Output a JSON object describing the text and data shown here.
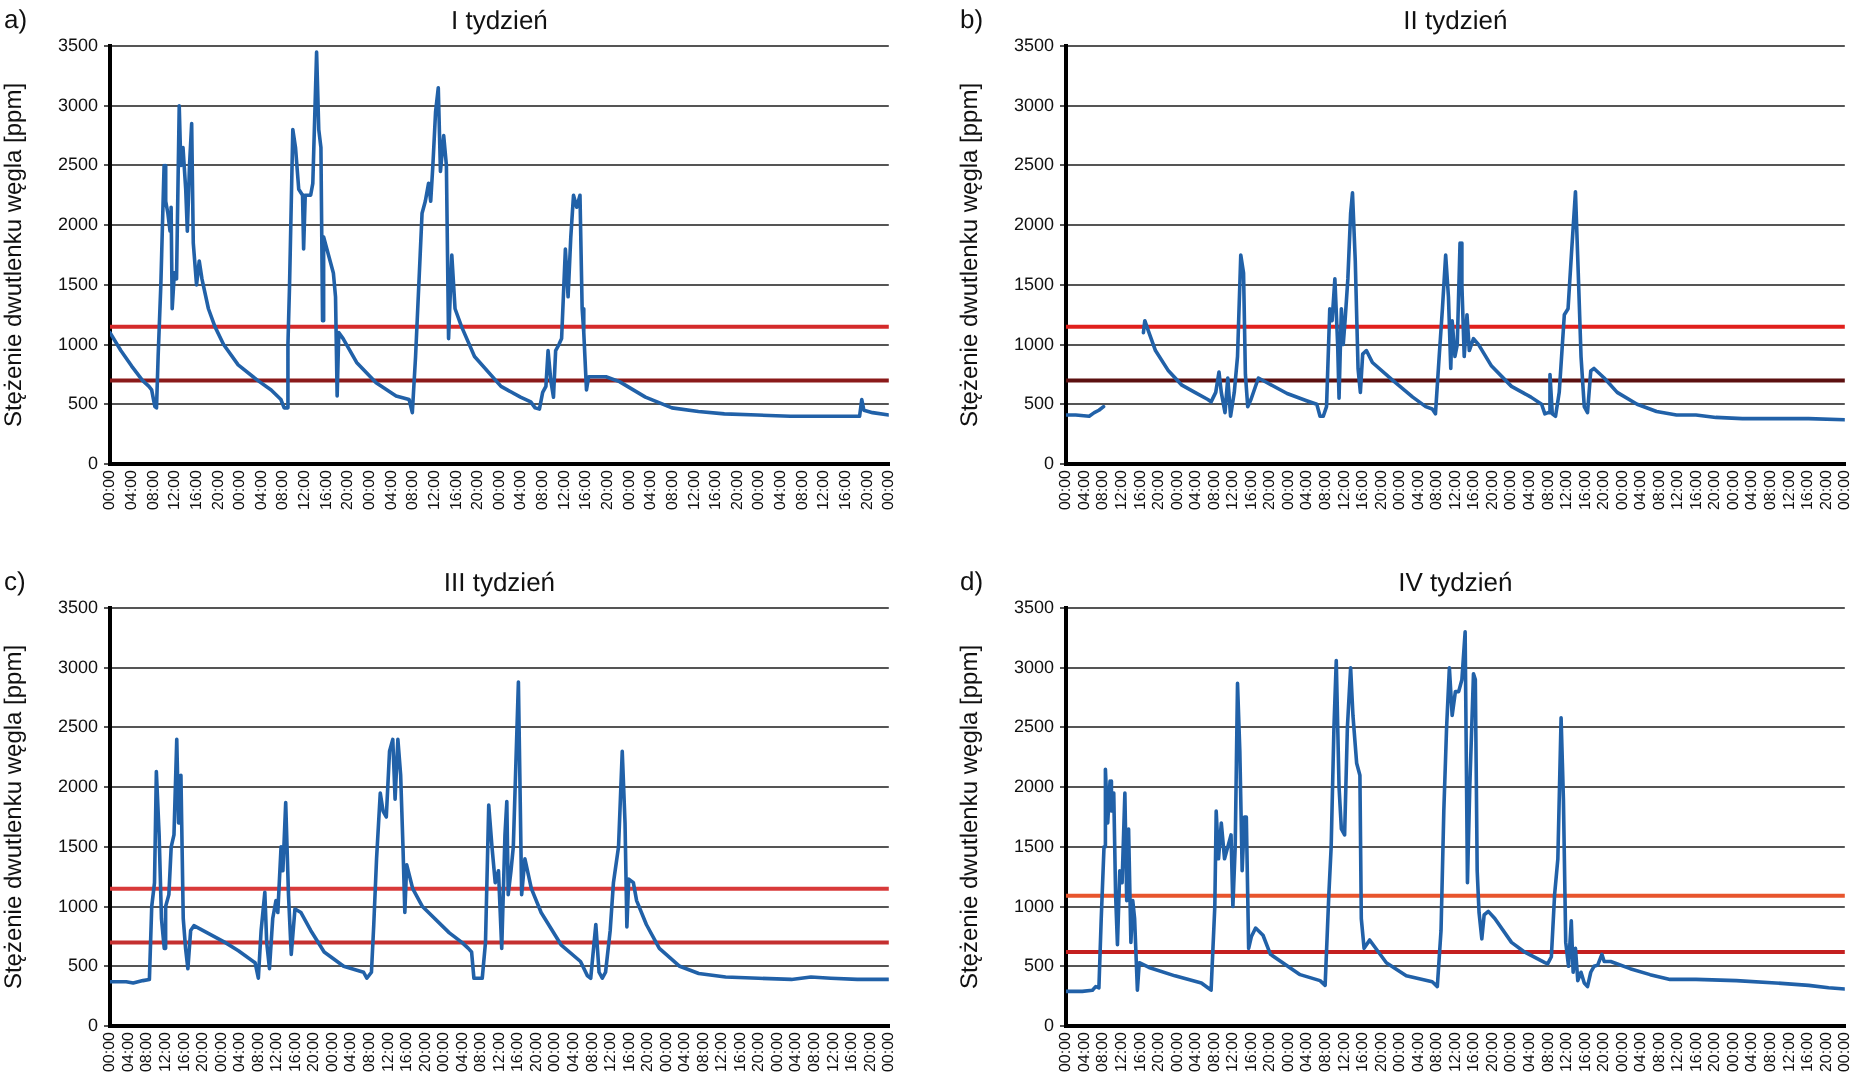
{
  "chart_data": [
    {
      "type": "line",
      "title": "I tydzień",
      "ylabel": "Stężenie dwutlenku węgla [ppm]",
      "annotations": [
        "a)"
      ],
      "grid": "y",
      "xlim": [
        "--01-01T00:00",
        "--01-07T00:00"
      ],
      "ylim": [
        0,
        3500
      ],
      "yticks": [
        0,
        500,
        1000,
        1500,
        2000,
        2500,
        3000,
        3500
      ],
      "xticks": [
        {
          "value": "--01-01T00:00",
          "label": "00:00"
        },
        {
          "value": "--01-01T04:00",
          "label": "04:00"
        },
        {
          "value": "--01-01T08:00",
          "label": "08:00"
        },
        {
          "value": "--01-01T12:00",
          "label": "12:00"
        },
        {
          "value": "--01-01T16:00",
          "label": "16:00"
        },
        {
          "value": "--01-01T20:00",
          "label": "20:00"
        },
        {
          "value": "--01-02T00:00",
          "label": "00:00"
        },
        {
          "value": "--01-02T04:00",
          "label": "04:00"
        },
        {
          "value": "--01-02T08:00",
          "label": "08:00"
        },
        {
          "value": "--01-02T12:00",
          "label": "12:00"
        },
        {
          "value": "--01-02T16:00",
          "label": "16:00"
        },
        {
          "value": "--01-02T20:00",
          "label": "20:00"
        },
        {
          "value": "--01-03T00:00",
          "label": "00:00"
        },
        {
          "value": "--01-03T04:00",
          "label": "04:00"
        },
        {
          "value": "--01-03T08:00",
          "label": "08:00"
        },
        {
          "value": "--01-03T12:00",
          "label": "12:00"
        },
        {
          "value": "--01-03T16:00",
          "label": "16:00"
        },
        {
          "value": "--01-03T20:00",
          "label": "20:00"
        },
        {
          "value": "--01-04T00:00",
          "label": "00:00"
        },
        {
          "value": "--01-04T04:00",
          "label": "04:00"
        },
        {
          "value": "--01-04T08:00",
          "label": "08:00"
        },
        {
          "value": "--01-04T12:00",
          "label": "12:00"
        },
        {
          "value": "--01-04T16:00",
          "label": "16:00"
        },
        {
          "value": "--01-04T20:00",
          "label": "20:00"
        },
        {
          "value": "--01-05T00:00",
          "label": "00:00"
        },
        {
          "value": "--01-05T04:00",
          "label": "04:00"
        },
        {
          "value": "--01-05T08:00",
          "label": "08:00"
        },
        {
          "value": "--01-05T12:00",
          "label": "12:00"
        },
        {
          "value": "--01-05T16:00",
          "label": "16:00"
        },
        {
          "value": "--01-05T20:00",
          "label": "20:00"
        },
        {
          "value": "--01-06T00:00",
          "label": "00:00"
        },
        {
          "value": "--01-06T04:00",
          "label": "04:00"
        },
        {
          "value": "--01-06T08:00",
          "label": "08:00"
        },
        {
          "value": "--01-06T12:00",
          "label": "12:00"
        },
        {
          "value": "--01-06T16:00",
          "label": "16:00"
        },
        {
          "value": "--01-06T20:00",
          "label": "20:00"
        },
        {
          "value": "--01-07T00:00",
          "label": "00:00"
        }
      ],
      "ref_lines": [
        {
          "axis": "y",
          "value": 1150,
          "color": "#d42a2a"
        },
        {
          "axis": "y",
          "value": 700,
          "color": "#8b1a1a"
        }
      ],
      "series": [
        {
          "color": "#2161a8",
          "x": [
            "--01-01T00:00",
            "--01-01T02:00",
            "--01-01T04:00",
            "--01-01T06:00",
            "--01-01T07:12",
            "--01-01T07:42",
            "--01-01T08:18",
            "--01-01T08:36",
            "--01-01T08:54",
            "--01-01T09:24",
            "--01-01T10:00",
            "--01-01T10:18",
            "--01-01T10:42",
            "--01-01T11:06",
            "--01-01T11:18",
            "--01-01T11:30",
            "--01-01T11:54",
            "--01-01T12:18",
            "--01-01T12:48",
            "--01-01T13:06",
            "--01-01T13:30",
            "--01-01T14:00",
            "--01-01T14:18",
            "--01-01T14:42",
            "--01-01T15:06",
            "--01-01T15:24",
            "--01-01T16:00",
            "--01-01T16:30",
            "--01-01T17:00",
            "--01-01T18:12",
            "--01-01T19:24",
            "--01-01T21:00",
            "--01-01T23:42",
            "--01-02T03:18",
            "--01-02T05:48",
            "--01-02T07:36",
            "--01-02T08:12",
            "--01-02T08:36",
            "--01-02T08:54",
            "--01-02T09:12",
            "--01-02T09:48",
            "--01-02T10:18",
            "--01-02T10:54",
            "--01-02T11:36",
            "--01-02T11:48",
            "--01-02T12:06",
            "--01-02T13:06",
            "--01-02T13:30",
            "--01-02T14:12",
            "--01-02T14:36",
            "--01-02T15:00",
            "--01-02T15:18",
            "--01-02T15:30",
            "--01-02T16:06",
            "--01-02T17:18",
            "--01-02T17:42",
            "--01-02T18:00",
            "--01-02T18:18",
            "--01-02T19:06",
            "--01-02T21:36",
            "--01-03T01:12",
            "--01-03T04:54",
            "--01-03T07:18",
            "--01-03T07:54",
            "--01-03T08:30",
            "--01-03T09:42",
            "--01-03T10:18",
            "--01-03T10:54",
            "--01-03T11:18",
            "--01-03T11:42",
            "--01-03T12:12",
            "--01-03T12:42",
            "--01-03T13:06",
            "--01-03T13:42",
            "--01-03T14:12",
            "--01-03T14:36",
            "--01-03T15:12",
            "--01-03T15:48",
            "--01-03T17:00",
            "--01-03T19:24",
            "--01-04T00:18",
            "--01-04T03:54",
            "--01-04T05:48",
            "--01-04T06:36",
            "--01-04T07:24",
            "--01-04T08:00",
            "--01-04T08:36",
            "--01-04T09:00",
            "--01-04T09:30",
            "--01-04T10:00",
            "--01-04T10:24",
            "--01-04T11:00",
            "--01-04T11:30",
            "--01-04T12:12",
            "--01-04T12:42",
            "--01-04T13:12",
            "--01-04T13:42",
            "--01-04T14:18",
            "--01-04T14:54",
            "--01-04T15:18",
            "--01-04T15:36",
            "--01-04T16:06",
            "--01-04T16:30",
            "--01-04T19:42",
            "--01-04T22:12",
            "--01-05T03:00",
            "--01-05T07:54",
            "--01-05T12:48",
            "--01-05T17:36",
            "--01-05T23:42",
            "--01-06T05:48",
            "--01-06T11:54",
            "--01-06T18:36",
            "--01-06T19:00",
            "--01-06T19:24",
            "--01-06T21:00",
            "--01-07T00:00"
          ],
          "values": [
            1100,
            950,
            820,
            700,
            650,
            620,
            480,
            470,
            900,
            1500,
            2500,
            2200,
            2100,
            1950,
            2150,
            1300,
            1600,
            1550,
            3000,
            2500,
            2650,
            2300,
            1950,
            2500,
            2850,
            1850,
            1500,
            1700,
            1550,
            1300,
            1150,
            1000,
            830,
            700,
            620,
            540,
            470,
            470,
            1000,
            1500,
            2800,
            2650,
            2300,
            2250,
            1800,
            2250,
            2250,
            2350,
            3450,
            2800,
            2650,
            1200,
            1900,
            1800,
            1600,
            1400,
            570,
            1100,
            1050,
            850,
            680,
            570,
            540,
            430,
            900,
            2100,
            2200,
            2350,
            2200,
            2500,
            2950,
            3150,
            2450,
            2750,
            2500,
            1050,
            1750,
            1300,
            1150,
            900,
            650,
            560,
            520,
            470,
            460,
            600,
            650,
            950,
            700,
            560,
            950,
            1000,
            1050,
            1800,
            1400,
            1900,
            2250,
            2150,
            2250,
            1300,
            1100,
            620,
            730,
            730,
            690,
            560,
            470,
            440,
            420,
            410,
            400,
            400,
            400,
            540,
            450,
            430,
            410
          ]
        }
      ]
    },
    {
      "type": "line",
      "title": "II tydzień",
      "ylabel": "Stężenie dwutlenku węgla [ppm]",
      "annotations": [
        "b)"
      ],
      "grid": "y",
      "xlim": [
        "--01-01T00:00",
        "--01-08T00:00"
      ],
      "ylim": [
        0,
        3500
      ],
      "yticks": [
        0,
        500,
        1000,
        1500,
        2000,
        2500,
        3000,
        3500
      ],
      "xticks": [
        {
          "value": "--01-01T00:00",
          "label": "00:00"
        },
        {
          "value": "--01-01T04:00",
          "label": "04:00"
        },
        {
          "value": "--01-01T08:00",
          "label": "08:00"
        },
        {
          "value": "--01-01T12:00",
          "label": "12:00"
        },
        {
          "value": "--01-01T16:00",
          "label": "16:00"
        },
        {
          "value": "--01-01T20:00",
          "label": "20:00"
        },
        {
          "value": "--01-02T00:00",
          "label": "00:00"
        },
        {
          "value": "--01-02T04:00",
          "label": "04:00"
        },
        {
          "value": "--01-02T08:00",
          "label": "08:00"
        },
        {
          "value": "--01-02T12:00",
          "label": "12:00"
        },
        {
          "value": "--01-02T16:00",
          "label": "16:00"
        },
        {
          "value": "--01-02T20:00",
          "label": "20:00"
        },
        {
          "value": "--01-03T00:00",
          "label": "00:00"
        },
        {
          "value": "--01-03T04:00",
          "label": "04:00"
        },
        {
          "value": "--01-03T08:00",
          "label": "08:00"
        },
        {
          "value": "--01-03T12:00",
          "label": "12:00"
        },
        {
          "value": "--01-03T16:00",
          "label": "16:00"
        },
        {
          "value": "--01-03T20:00",
          "label": "20:00"
        },
        {
          "value": "--01-04T00:00",
          "label": "00:00"
        },
        {
          "value": "--01-04T04:00",
          "label": "04:00"
        },
        {
          "value": "--01-04T08:00",
          "label": "08:00"
        },
        {
          "value": "--01-04T12:00",
          "label": "12:00"
        },
        {
          "value": "--01-04T16:00",
          "label": "16:00"
        },
        {
          "value": "--01-04T20:00",
          "label": "20:00"
        },
        {
          "value": "--01-05T00:00",
          "label": "00:00"
        },
        {
          "value": "--01-05T04:00",
          "label": "04:00"
        },
        {
          "value": "--01-05T08:00",
          "label": "08:00"
        },
        {
          "value": "--01-05T12:00",
          "label": "12:00"
        },
        {
          "value": "--01-05T16:00",
          "label": "16:00"
        },
        {
          "value": "--01-05T20:00",
          "label": "20:00"
        },
        {
          "value": "--01-06T00:00",
          "label": "00:00"
        },
        {
          "value": "--01-06T04:00",
          "label": "04:00"
        },
        {
          "value": "--01-06T08:00",
          "label": "08:00"
        },
        {
          "value": "--01-06T12:00",
          "label": "12:00"
        },
        {
          "value": "--01-06T16:00",
          "label": "16:00"
        },
        {
          "value": "--01-06T20:00",
          "label": "20:00"
        },
        {
          "value": "--01-07T00:00",
          "label": "00:00"
        },
        {
          "value": "--01-07T04:00",
          "label": "04:00"
        },
        {
          "value": "--01-07T08:00",
          "label": "08:00"
        },
        {
          "value": "--01-07T12:00",
          "label": "12:00"
        },
        {
          "value": "--01-07T16:00",
          "label": "16:00"
        },
        {
          "value": "--01-07T20:00",
          "label": "20:00"
        },
        {
          "value": "--01-08T00:00",
          "label": "00:00"
        }
      ],
      "ref_lines": [
        {
          "axis": "y",
          "value": 1150,
          "color": "#e0201c"
        },
        {
          "axis": "y",
          "value": 700,
          "color": "#5c1010"
        }
      ],
      "series": [
        {
          "color": "#2161a8",
          "x": [
            "--01-01T00:00",
            "--01-01T02:06",
            "--01-01T05:00",
            "--01-01T06:06",
            "--01-01T07:06",
            "--01-01T08:06",
            "--01-01T12:00",
            "--01-01T16:42",
            "--01-01T17:00",
            "--01-01T17:54",
            "--01-01T19:18",
            "--01-01T22:06",
            "--01-02T01:00",
            "--01-02T03:48",
            "--01-02T06:36",
            "--01-02T07:18",
            "--01-02T08:18",
            "--01-02T09:00",
            "--01-02T09:30",
            "--01-02T10:18",
            "--01-02T10:54",
            "--01-02T11:30",
            "--01-02T12:18",
            "--01-02T13:00",
            "--01-02T13:42",
            "--01-02T14:18",
            "--01-02T14:42",
            "--01-02T15:12",
            "--01-02T15:54",
            "--01-02T17:30",
            "--01-02T19:24",
            "--01-02T23:42",
            "--01-03T03:54",
            "--01-03T06:06",
            "--01-03T06:48",
            "--01-03T07:30",
            "--01-03T08:12",
            "--01-03T08:54",
            "--01-03T09:24",
            "--01-03T10:00",
            "--01-03T10:36",
            "--01-03T10:54",
            "--01-03T11:24",
            "--01-03T11:48",
            "--01-03T12:12",
            "--01-03T12:48",
            "--01-03T13:24",
            "--01-03T13:48",
            "--01-03T14:24",
            "--01-03T15:00",
            "--01-03T15:30",
            "--01-03T16:00",
            "--01-03T16:48",
            "--01-03T18:06",
            "--01-03T22:30",
            "--01-04T02:48",
            "--01-04T05:36",
            "--01-04T07:00",
            "--01-04T07:42",
            "--01-04T08:30",
            "--01-04T09:12",
            "--01-04T09:54",
            "--01-04T10:30",
            "--01-04T11:00",
            "--01-04T11:18",
            "--01-04T11:54",
            "--01-04T12:24",
            "--01-04T13:00",
            "--01-04T13:24",
            "--01-04T13:54",
            "--01-04T14:30",
            "--01-04T15:00",
            "--01-04T15:54",
            "--01-04T17:00",
            "--01-04T19:48",
            "--01-05T00:06",
            "--01-05T04:18",
            "--01-05T06:36",
            "--01-05T07:18",
            "--01-05T08:00",
            "--01-05T08:24",
            "--01-05T08:54",
            "--01-05T09:36",
            "--01-05T10:24",
            "--01-05T11:30",
            "--01-05T12:18",
            "--01-05T13:06",
            "--01-05T13:54",
            "--01-05T14:30",
            "--01-05T15:06",
            "--01-05T15:48",
            "--01-05T16:30",
            "--01-05T17:12",
            "--01-05T17:54",
            "--01-05T20:06",
            "--01-05T22:54",
            "--01-06T03:12",
            "--01-06T07:24",
            "--01-06T11:42",
            "--01-06T15:54",
            "--01-06T20:12",
            "--01-07T01:54",
            "--01-07T09:06",
            "--01-07T16:12",
            "--01-08T00:00"
          ],
          "values": [
            410,
            410,
            400,
            430,
            450,
            480,
            null,
            1100,
            1200,
            1100,
            950,
            780,
            660,
            600,
            540,
            520,
            600,
            770,
            600,
            430,
            720,
            400,
            600,
            900,
            1750,
            1600,
            750,
            480,
            540,
            720,
            680,
            590,
            530,
            500,
            400,
            400,
            480,
            1300,
            1200,
            1550,
            1000,
            550,
            1300,
            1000,
            1200,
            1550,
            2100,
            2270,
            1700,
            800,
            600,
            920,
            950,
            850,
            700,
            560,
            480,
            460,
            420,
            900,
            1300,
            1750,
            1400,
            800,
            1200,
            900,
            1000,
            1850,
            1500,
            900,
            1250,
            950,
            1050,
            1000,
            820,
            650,
            560,
            500,
            420,
            430,
            750,
            420,
            400,
            600,
            1250,
            1300,
            1800,
            2280,
            1600,
            900,
            480,
            430,
            780,
            800,
            720,
            600,
            500,
            440,
            410,
            410,
            390,
            380,
            380,
            380,
            370
          ]
        }
      ]
    },
    {
      "type": "line",
      "title": "III tydzień",
      "ylabel": "Stężenie dwutlenku węgla [ppm]",
      "annotations": [
        "c)"
      ],
      "grid": "y",
      "xlim": [
        "--01-01T00:00",
        "--01-08T00:00"
      ],
      "ylim": [
        0,
        3500
      ],
      "yticks": [
        0,
        500,
        1000,
        1500,
        2000,
        2500,
        3000,
        3500
      ],
      "xticks": [
        {
          "value": "--01-01T00:00",
          "label": "00:00"
        },
        {
          "value": "--01-01T04:00",
          "label": "04:00"
        },
        {
          "value": "--01-01T08:00",
          "label": "08:00"
        },
        {
          "value": "--01-01T12:00",
          "label": "12:00"
        },
        {
          "value": "--01-01T16:00",
          "label": "16:00"
        },
        {
          "value": "--01-01T20:00",
          "label": "20:00"
        },
        {
          "value": "--01-02T00:00",
          "label": "00:00"
        },
        {
          "value": "--01-02T04:00",
          "label": "04:00"
        },
        {
          "value": "--01-02T08:00",
          "label": "08:00"
        },
        {
          "value": "--01-02T12:00",
          "label": "12:00"
        },
        {
          "value": "--01-02T16:00",
          "label": "16:00"
        },
        {
          "value": "--01-02T20:00",
          "label": "20:00"
        },
        {
          "value": "--01-03T00:00",
          "label": "00:00"
        },
        {
          "value": "--01-03T04:00",
          "label": "04:00"
        },
        {
          "value": "--01-03T08:00",
          "label": "08:00"
        },
        {
          "value": "--01-03T12:00",
          "label": "12:00"
        },
        {
          "value": "--01-03T16:00",
          "label": "16:00"
        },
        {
          "value": "--01-03T20:00",
          "label": "20:00"
        },
        {
          "value": "--01-04T00:00",
          "label": "00:00"
        },
        {
          "value": "--01-04T04:00",
          "label": "04:00"
        },
        {
          "value": "--01-04T08:00",
          "label": "08:00"
        },
        {
          "value": "--01-04T12:00",
          "label": "12:00"
        },
        {
          "value": "--01-04T16:00",
          "label": "16:00"
        },
        {
          "value": "--01-04T20:00",
          "label": "20:00"
        },
        {
          "value": "--01-05T00:00",
          "label": "00:00"
        },
        {
          "value": "--01-05T04:00",
          "label": "04:00"
        },
        {
          "value": "--01-05T08:00",
          "label": "08:00"
        },
        {
          "value": "--01-05T12:00",
          "label": "12:00"
        },
        {
          "value": "--01-05T16:00",
          "label": "16:00"
        },
        {
          "value": "--01-05T20:00",
          "label": "20:00"
        },
        {
          "value": "--01-06T00:00",
          "label": "00:00"
        },
        {
          "value": "--01-06T04:00",
          "label": "04:00"
        },
        {
          "value": "--01-06T08:00",
          "label": "08:00"
        },
        {
          "value": "--01-06T12:00",
          "label": "12:00"
        },
        {
          "value": "--01-06T16:00",
          "label": "16:00"
        },
        {
          "value": "--01-06T20:00",
          "label": "20:00"
        },
        {
          "value": "--01-07T00:00",
          "label": "00:00"
        },
        {
          "value": "--01-07T04:00",
          "label": "04:00"
        },
        {
          "value": "--01-07T08:00",
          "label": "08:00"
        },
        {
          "value": "--01-07T12:00",
          "label": "12:00"
        },
        {
          "value": "--01-07T16:00",
          "label": "16:00"
        },
        {
          "value": "--01-07T20:00",
          "label": "20:00"
        },
        {
          "value": "--01-08T00:00",
          "label": "00:00"
        }
      ],
      "ref_lines": [
        {
          "axis": "y",
          "value": 1150,
          "color": "#d83a3a"
        },
        {
          "axis": "y",
          "value": 700,
          "color": "#c43030"
        }
      ],
      "series": [
        {
          "color": "#2161a8",
          "x": [
            "--01-01T00:00",
            "--01-01T03:30",
            "--01-01T05:00",
            "--01-01T07:06",
            "--01-01T08:30",
            "--01-01T09:00",
            "--01-01T09:36",
            "--01-01T10:00",
            "--01-01T10:36",
            "--01-01T11:06",
            "--01-01T11:42",
            "--01-01T12:00",
            "--01-01T12:42",
            "--01-01T13:12",
            "--01-01T13:48",
            "--01-01T14:24",
            "--01-01T14:48",
            "--01-01T15:18",
            "--01-01T15:48",
            "--01-01T16:18",
            "--01-01T16:48",
            "--01-01T17:24",
            "--01-01T18:06",
            "--01-01T19:06",
            "--01-02T00:48",
            "--01-02T03:42",
            "--01-02T07:18",
            "--01-02T08:00",
            "--01-02T08:36",
            "--01-02T09:24",
            "--01-02T09:48",
            "--01-02T10:24",
            "--01-02T11:06",
            "--01-02T11:48",
            "--01-02T12:12",
            "--01-02T12:54",
            "--01-02T13:18",
            "--01-02T13:54",
            "--01-02T14:30",
            "--01-02T15:06",
            "--01-02T15:54",
            "--01-02T17:12",
            "--01-02T19:18",
            "--01-02T22:12",
            "--01-03T02:24",
            "--01-03T06:42",
            "--01-03T07:24",
            "--01-03T08:24",
            "--01-03T08:54",
            "--01-03T09:30",
            "--01-03T10:18",
            "--01-03T10:54",
            "--01-03T11:36",
            "--01-03T12:18",
            "--01-03T13:00",
            "--01-03T13:30",
            "--01-03T14:06",
            "--01-03T14:42",
            "--01-03T15:12",
            "--01-03T15:36",
            "--01-03T16:00",
            "--01-03T17:18",
            "--01-03T19:24",
            "--01-04T01:12",
            "--01-04T03:54",
            "--01-04T05:18",
            "--01-04T06:00",
            "--01-04T06:30",
            "--01-04T08:18",
            "--01-04T09:00",
            "--01-04T09:42",
            "--01-04T10:24",
            "--01-04T11:06",
            "--01-04T11:48",
            "--01-04T12:30",
            "--01-04T13:12",
            "--01-04T13:36",
            "--01-04T13:54",
            "--01-04T14:30",
            "--01-04T15:00",
            "--01-04T16:06",
            "--01-04T16:48",
            "--01-04T17:30",
            "--01-04T18:54",
            "--01-04T21:00",
            "--01-05T01:18",
            "--01-05T05:30",
            "--01-05T07:00",
            "--01-05T07:42",
            "--01-05T08:48",
            "--01-05T09:30",
            "--01-05T10:12",
            "--01-05T10:54",
            "--01-05T11:54",
            "--01-05T12:36",
            "--01-05T13:42",
            "--01-05T14:30",
            "--01-05T15:06",
            "--01-05T15:30",
            "--01-05T15:54",
            "--01-05T16:54",
            "--01-05T17:36",
            "--01-05T19:42",
            "--01-05T22:30",
            "--01-06T02:54",
            "--01-06T07:00",
            "--01-06T12:48",
            "--01-06T19:54",
            "--01-07T03:00",
            "--01-07T07:12",
            "--01-07T11:30",
            "--01-07T17:12",
            "--01-08T00:00"
          ],
          "values": [
            370,
            370,
            360,
            380,
            390,
            1000,
            1200,
            2130,
            1600,
            900,
            650,
            1000,
            1100,
            1500,
            1600,
            2400,
            1700,
            2100,
            900,
            650,
            480,
            800,
            840,
            820,
            700,
            630,
            530,
            400,
            800,
            1120,
            700,
            480,
            900,
            1050,
            950,
            1500,
            1300,
            1870,
            1100,
            600,
            980,
            950,
            800,
            620,
            500,
            450,
            400,
            450,
            850,
            1400,
            1950,
            1800,
            1750,
            2300,
            2400,
            1900,
            2400,
            2100,
            1500,
            950,
            1350,
            1150,
            1000,
            780,
            700,
            650,
            620,
            400,
            400,
            700,
            1850,
            1500,
            1200,
            1300,
            650,
            1600,
            1880,
            1100,
            1300,
            1500,
            2880,
            1100,
            1400,
            1150,
            950,
            680,
            540,
            420,
            400,
            850,
            450,
            400,
            450,
            800,
            1200,
            1500,
            2300,
            1700,
            830,
            1230,
            1200,
            1050,
            850,
            650,
            500,
            440,
            410,
            400,
            390,
            410,
            400,
            390,
            390
          ]
        }
      ]
    },
    {
      "type": "line",
      "title": "IV tydzień",
      "ylabel": "Stężenie dwutlenku węgla [ppm]",
      "annotations": [
        "d)"
      ],
      "grid": "y",
      "xlim": [
        "--01-01T00:00",
        "--01-08T00:00"
      ],
      "ylim": [
        0,
        3500
      ],
      "yticks": [
        0,
        500,
        1000,
        1500,
        2000,
        2500,
        3000,
        3500
      ],
      "xticks": [
        {
          "value": "--01-01T00:00",
          "label": "00:00"
        },
        {
          "value": "--01-01T04:00",
          "label": "04:00"
        },
        {
          "value": "--01-01T08:00",
          "label": "08:00"
        },
        {
          "value": "--01-01T12:00",
          "label": "12:00"
        },
        {
          "value": "--01-01T16:00",
          "label": "16:00"
        },
        {
          "value": "--01-01T20:00",
          "label": "20:00"
        },
        {
          "value": "--01-02T00:00",
          "label": "00:00"
        },
        {
          "value": "--01-02T04:00",
          "label": "04:00"
        },
        {
          "value": "--01-02T08:00",
          "label": "08:00"
        },
        {
          "value": "--01-02T12:00",
          "label": "12:00"
        },
        {
          "value": "--01-02T16:00",
          "label": "16:00"
        },
        {
          "value": "--01-02T20:00",
          "label": "20:00"
        },
        {
          "value": "--01-03T00:00",
          "label": "00:00"
        },
        {
          "value": "--01-03T04:00",
          "label": "04:00"
        },
        {
          "value": "--01-03T08:00",
          "label": "08:00"
        },
        {
          "value": "--01-03T12:00",
          "label": "12:00"
        },
        {
          "value": "--01-03T16:00",
          "label": "16:00"
        },
        {
          "value": "--01-03T20:00",
          "label": "20:00"
        },
        {
          "value": "--01-04T00:00",
          "label": "00:00"
        },
        {
          "value": "--01-04T04:00",
          "label": "04:00"
        },
        {
          "value": "--01-04T08:00",
          "label": "08:00"
        },
        {
          "value": "--01-04T12:00",
          "label": "12:00"
        },
        {
          "value": "--01-04T16:00",
          "label": "16:00"
        },
        {
          "value": "--01-04T20:00",
          "label": "20:00"
        },
        {
          "value": "--01-05T00:00",
          "label": "00:00"
        },
        {
          "value": "--01-05T04:00",
          "label": "04:00"
        },
        {
          "value": "--01-05T08:00",
          "label": "08:00"
        },
        {
          "value": "--01-05T12:00",
          "label": "12:00"
        },
        {
          "value": "--01-05T16:00",
          "label": "16:00"
        },
        {
          "value": "--01-05T20:00",
          "label": "20:00"
        },
        {
          "value": "--01-06T00:00",
          "label": "00:00"
        },
        {
          "value": "--01-06T04:00",
          "label": "04:00"
        },
        {
          "value": "--01-06T08:00",
          "label": "08:00"
        },
        {
          "value": "--01-06T12:00",
          "label": "12:00"
        },
        {
          "value": "--01-06T16:00",
          "label": "16:00"
        },
        {
          "value": "--01-06T20:00",
          "label": "20:00"
        },
        {
          "value": "--01-07T00:00",
          "label": "00:00"
        },
        {
          "value": "--01-07T04:00",
          "label": "04:00"
        },
        {
          "value": "--01-07T08:00",
          "label": "08:00"
        },
        {
          "value": "--01-07T12:00",
          "label": "12:00"
        },
        {
          "value": "--01-07T16:00",
          "label": "16:00"
        },
        {
          "value": "--01-07T20:00",
          "label": "20:00"
        },
        {
          "value": "--01-08T00:00",
          "label": "00:00"
        }
      ],
      "ref_lines": [
        {
          "axis": "y",
          "value": 1090,
          "color": "#e8552d"
        },
        {
          "axis": "y",
          "value": 620,
          "color": "#c42020"
        }
      ],
      "series": [
        {
          "color": "#2161a8",
          "x": [
            "--01-01T00:00",
            "--01-01T03:30",
            "--01-01T05:42",
            "--01-01T06:24",
            "--01-01T07:06",
            "--01-01T07:36",
            "--01-01T08:12",
            "--01-01T08:30",
            "--01-01T09:00",
            "--01-01T09:30",
            "--01-01T09:48",
            "--01-01T10:18",
            "--01-01T10:42",
            "--01-01T11:06",
            "--01-01T11:36",
            "--01-01T12:06",
            "--01-01T12:42",
            "--01-01T13:06",
            "--01-01T13:30",
            "--01-01T14:00",
            "--01-01T14:24",
            "--01-01T14:48",
            "--01-01T15:24",
            "--01-01T15:48",
            "--01-01T17:54",
            "--01-01T23:30",
            "--01-02T05:12",
            "--01-02T06:36",
            "--01-02T07:18",
            "--01-02T08:06",
            "--01-02T08:24",
            "--01-02T08:54",
            "--01-02T09:30",
            "--01-02T10:12",
            "--01-02T10:54",
            "--01-02T11:36",
            "--01-02T12:00",
            "--01-02T12:30",
            "--01-02T13:00",
            "--01-02T13:30",
            "--01-02T14:00",
            "--01-02T14:30",
            "--01-02T14:54",
            "--01-02T15:24",
            "--01-02T16:00",
            "--01-02T16:54",
            "--01-02T18:30",
            "--01-02T20:06",
            "--01-03T02:30",
            "--01-03T06:48",
            "--01-03T07:54",
            "--01-03T08:42",
            "--01-03T09:12",
            "--01-03T09:48",
            "--01-03T10:18",
            "--01-03T10:54",
            "--01-03T11:24",
            "--01-03T12:06",
            "--01-03T12:42",
            "--01-03T13:24",
            "--01-03T13:54",
            "--01-03T14:42",
            "--01-03T15:24",
            "--01-03T15:42",
            "--01-03T16:18",
            "--01-03T17:30",
            "--01-03T21:06",
            "--01-04T01:24",
            "--01-04T07:00",
            "--01-04T08:06",
            "--01-04T08:54",
            "--01-04T09:30",
            "--01-04T10:06",
            "--01-04T10:42",
            "--01-04T11:18",
            "--01-04T12:00",
            "--01-04T12:42",
            "--01-04T13:24",
            "--01-04T14:06",
            "--01-04T14:36",
            "--01-04T15:06",
            "--01-04T15:54",
            "--01-04T16:18",
            "--01-04T16:42",
            "--01-04T17:06",
            "--01-04T17:42",
            "--01-04T18:12",
            "--01-04T19:06",
            "--01-04T20:30",
            "--01-05T00:06",
            "--01-05T02:54",
            "--01-05T07:18",
            "--01-05T07:54",
            "--01-05T08:42",
            "--01-05T09:24",
            "--01-05T10:06",
            "--01-05T10:48",
            "--01-05T11:18",
            "--01-05T11:48",
            "--01-05T12:24",
            "--01-05T13:00",
            "--01-05T13:24",
            "--01-05T13:54",
            "--01-05T14:24",
            "--01-05T15:06",
            "--01-05T15:48",
            "--01-05T16:30",
            "--01-05T17:12",
            "--01-05T17:54",
            "--01-05T18:42",
            "--01-05T19:36",
            "--01-05T20:06",
            "--01-05T21:30",
            "--01-06T01:42",
            "--01-06T06:00",
            "--01-06T10:18",
            "--01-06T15:54",
            "--01-07T00:36",
            "--01-07T09:06",
            "--01-07T16:12",
            "--01-07T20:30",
            "--01-08T00:00"
          ],
          "values": [
            290,
            290,
            300,
            330,
            320,
            900,
            1500,
            2150,
            1700,
            2050,
            1800,
            1950,
            1100,
            680,
            1300,
            1200,
            1950,
            1050,
            1650,
            700,
            1050,
            900,
            300,
            530,
            490,
            420,
            360,
            320,
            300,
            1000,
            1800,
            1400,
            1700,
            1400,
            1500,
            1600,
            1000,
            1500,
            2870,
            2300,
            1300,
            1750,
            1750,
            650,
            750,
            820,
            760,
            600,
            430,
            380,
            340,
            1100,
            1500,
            2500,
            3060,
            2000,
            1650,
            1600,
            2500,
            3000,
            2600,
            2200,
            2100,
            900,
            650,
            720,
            530,
            420,
            370,
            330,
            800,
            1800,
            2500,
            3000,
            2600,
            2800,
            2800,
            2900,
            3300,
            1200,
            2000,
            2950,
            2900,
            1300,
            950,
            730,
            930,
            960,
            900,
            700,
            620,
            530,
            520,
            580,
            1100,
            1400,
            2580,
            1900,
            700,
            500,
            880,
            450,
            650,
            380,
            450,
            360,
            330,
            450,
            500,
            510,
            600,
            540,
            540,
            480,
            430,
            390,
            390,
            380,
            360,
            340,
            320,
            310
          ]
        }
      ]
    }
  ]
}
